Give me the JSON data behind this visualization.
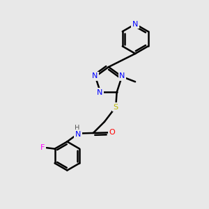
{
  "background_color": "#e8e8e8",
  "atom_colors": {
    "N": "#0000ff",
    "O": "#ff0000",
    "S": "#b8b800",
    "F": "#ff00ff",
    "C": "#000000",
    "H": "#555555"
  },
  "bond_color": "#000000",
  "bond_width": 1.8,
  "font_size": 8
}
